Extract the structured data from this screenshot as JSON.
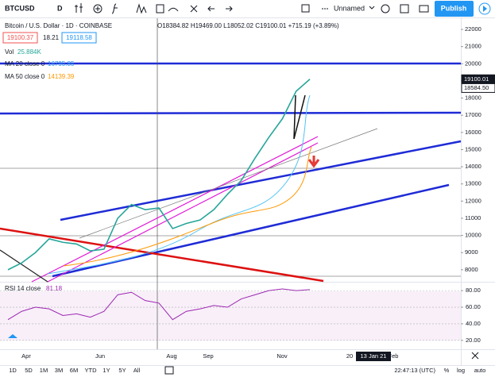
{
  "toolbar": {
    "symbol": "BTCUSD",
    "interval": "D",
    "layout_name": "Unnamed",
    "publish": "Publish"
  },
  "legend": {
    "title": "Bitcoin / U.S. Dollar · 1D · COINBASE",
    "ohlc": "O18384.82 H19469.00 L18052.02 C19100.01 +715.19 (+3.89%)",
    "bid": "19100.37",
    "spread": "18.21",
    "ask": "19118.58",
    "vol": "Vol",
    "vol_value": "25.884K",
    "ma20": "MA 20 close 0",
    "ma20_value": "16795.85",
    "ma50": "MA 50 close 0",
    "ma50_value": "14139.39"
  },
  "chart_data": {
    "type": "line",
    "color": "#26a69a",
    "values": [
      8000,
      8400,
      9000,
      9800,
      9600,
      9500,
      9100,
      9200,
      11000,
      11800,
      11500,
      11600,
      10400,
      10700,
      10900,
      11500,
      12400,
      13200,
      14500,
      15700,
      16800,
      18400,
      19100
    ],
    "ylim": [
      7300,
      22650
    ],
    "yticks": [
      8000,
      9000,
      10000,
      11000,
      12000,
      13000,
      14000,
      15000,
      16000,
      17000,
      18000,
      19000,
      20000,
      21000,
      22000
    ],
    "price_tags": [
      19100.01,
      {
        "value": 18584.5,
        "label": "18584.50"
      }
    ],
    "x_axis": [
      "Apr",
      "Jun",
      "Aug",
      "Sep",
      "Nov",
      "20",
      "13 Jan 21",
      "Feb"
    ]
  },
  "rsi": {
    "title": "RSI 14 close",
    "value": 81.18,
    "color": "#9c27b0",
    "values": [
      45,
      55,
      60,
      58,
      50,
      52,
      48,
      55,
      75,
      78,
      68,
      65,
      45,
      55,
      58,
      62,
      60,
      70,
      75,
      80,
      82,
      80,
      81.18
    ],
    "ylim": [
      9.3,
      89.7
    ],
    "yticks": [
      {
        "value": 80,
        "label": "80.00"
      },
      {
        "value": 60,
        "label": "60.00"
      },
      {
        "value": 40,
        "label": "40.00"
      },
      {
        "value": 20,
        "label": "20.00"
      }
    ]
  },
  "bottom_bar": {
    "ranges": [
      "1D",
      "5D",
      "1M",
      "3M",
      "6M",
      "YTD",
      "1Y",
      "5Y",
      "All"
    ],
    "clock": "22:47:13 (UTC)",
    "scale_options": [
      "%",
      "log",
      "auto"
    ]
  }
}
